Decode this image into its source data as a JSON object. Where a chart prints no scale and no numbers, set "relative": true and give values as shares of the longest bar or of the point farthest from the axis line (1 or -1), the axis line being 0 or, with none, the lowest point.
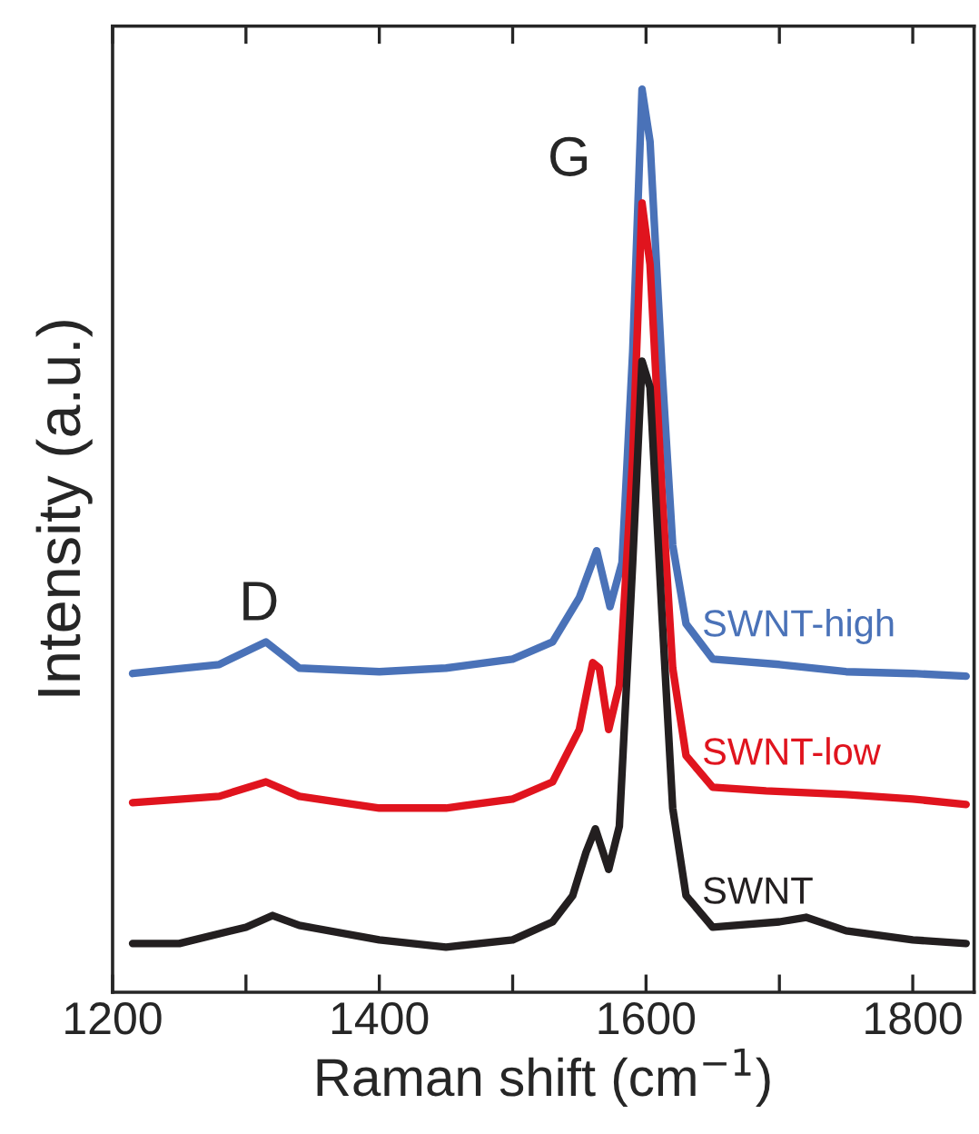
{
  "chart_data": {
    "type": "line",
    "relative": true,
    "xlabel": "Raman shift (cm$^{−1}$)",
    "ylabel": "Intensity (a.u.)",
    "xlim": [
      1200,
      1846
    ],
    "xticks": [
      1200,
      {
        "value": 1300,
        "label": null
      },
      1400,
      {
        "value": 1500,
        "label": null
      },
      1600,
      {
        "value": 1700,
        "label": null
      },
      1800
    ],
    "tick_labels": "x",
    "grid": false,
    "legend": false,
    "annotations": [
      "D",
      "G"
    ],
    "series": [
      {
        "name": "SWNT-high",
        "color": "#4a72b8",
        "x": [
          1215,
          1280,
          1315,
          1340,
          1400,
          1450,
          1500,
          1530,
          1550,
          1563,
          1573,
          1582,
          1590,
          1597,
          1603,
          1612,
          1620,
          1630,
          1650,
          1700,
          1750,
          1800,
          1840
        ],
        "values": [
          0.353,
          0.363,
          0.388,
          0.359,
          0.355,
          0.359,
          0.369,
          0.388,
          0.437,
          0.489,
          0.427,
          0.476,
          0.709,
          1.0,
          0.942,
          0.689,
          0.495,
          0.408,
          0.369,
          0.363,
          0.355,
          0.353,
          0.35
        ]
      },
      {
        "name": "SWNT-low",
        "color": "#e0141e",
        "x": [
          1215,
          1280,
          1315,
          1340,
          1400,
          1450,
          1500,
          1530,
          1550,
          1560,
          1565,
          1572,
          1580,
          1590,
          1597,
          1603,
          1612,
          1620,
          1630,
          1650,
          1690,
          1750,
          1800,
          1840
        ],
        "values": [
          0.21,
          0.217,
          0.233,
          0.217,
          0.204,
          0.204,
          0.214,
          0.233,
          0.291,
          0.365,
          0.359,
          0.291,
          0.34,
          0.592,
          0.874,
          0.806,
          0.553,
          0.359,
          0.262,
          0.227,
          0.223,
          0.219,
          0.214,
          0.208
        ]
      },
      {
        "name": "SWNT",
        "color": "#231f20",
        "x": [
          1215,
          1250,
          1300,
          1320,
          1340,
          1400,
          1450,
          1500,
          1530,
          1545,
          1555,
          1562,
          1572,
          1580,
          1590,
          1597,
          1603,
          1612,
          1620,
          1630,
          1650,
          1700,
          1720,
          1750,
          1800,
          1840
        ],
        "values": [
          0.054,
          0.054,
          0.072,
          0.085,
          0.074,
          0.058,
          0.05,
          0.058,
          0.078,
          0.107,
          0.155,
          0.181,
          0.136,
          0.184,
          0.476,
          0.699,
          0.67,
          0.417,
          0.204,
          0.107,
          0.072,
          0.078,
          0.083,
          0.068,
          0.058,
          0.054
        ]
      }
    ]
  }
}
